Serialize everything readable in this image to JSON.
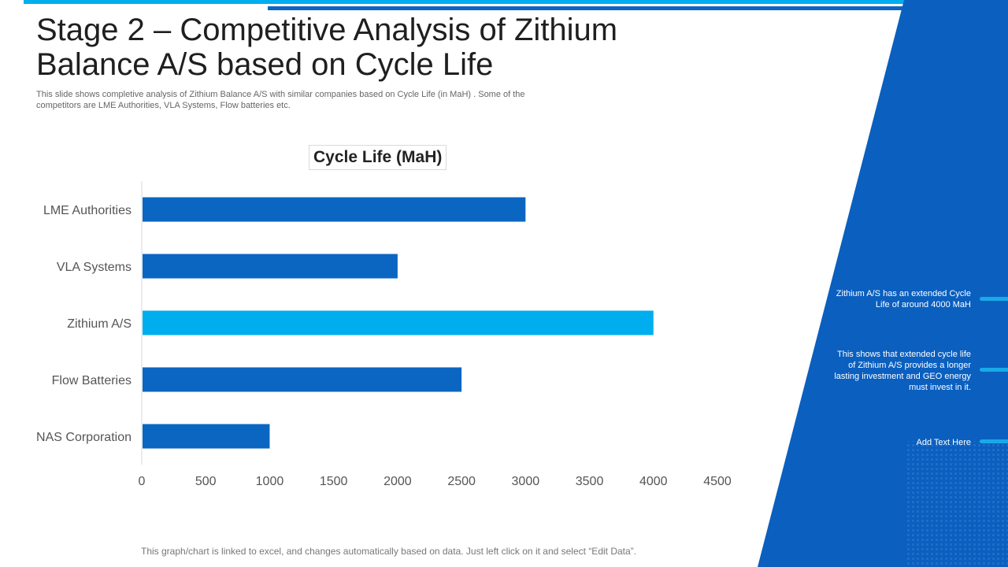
{
  "colors": {
    "primary": "#0b66c2",
    "highlight": "#00aeef",
    "panel": "#0a5fbf",
    "accent_line": "#1aa9e8"
  },
  "header": {
    "title_line1": "Stage 2 – Competitive Analysis of Zithium",
    "title_line2": "Balance A/S based on Cycle Life",
    "subtitle_line1": "This slide shows completive analysis of Zithium Balance A/S with similar companies based on Cycle Life (in MaH) . Some of the",
    "subtitle_line2": "competitors are LME Authorities, VLA Systems, Flow batteries etc."
  },
  "chart_data": {
    "type": "bar",
    "orientation": "horizontal",
    "title": "Cycle Life (MaH)",
    "categories": [
      "LME Authorities",
      "VLA Systems",
      "Zithium A/S",
      "Flow Batteries",
      "NAS Corporation"
    ],
    "values": [
      3000,
      2000,
      4000,
      2500,
      1000
    ],
    "highlight_category": "Zithium A/S",
    "xlim": [
      0,
      4500
    ],
    "xticks": [
      0,
      500,
      1000,
      1500,
      2000,
      2500,
      3000,
      3500,
      4000,
      4500
    ],
    "xlabel": "",
    "ylabel": "",
    "grid": false,
    "legend": "none"
  },
  "callouts": [
    {
      "text": "Zithium A/S has an extended Cycle Life of around 4000 MaH"
    },
    {
      "text": "This shows that extended cycle life of Zithium A/S provides a longer lasting investment and GEO energy must invest in it."
    },
    {
      "text": "Add Text Here"
    }
  ],
  "footer": {
    "note": "This graph/chart is linked to excel, and changes automatically based on data. Just left click on it and select “Edit Data”."
  }
}
